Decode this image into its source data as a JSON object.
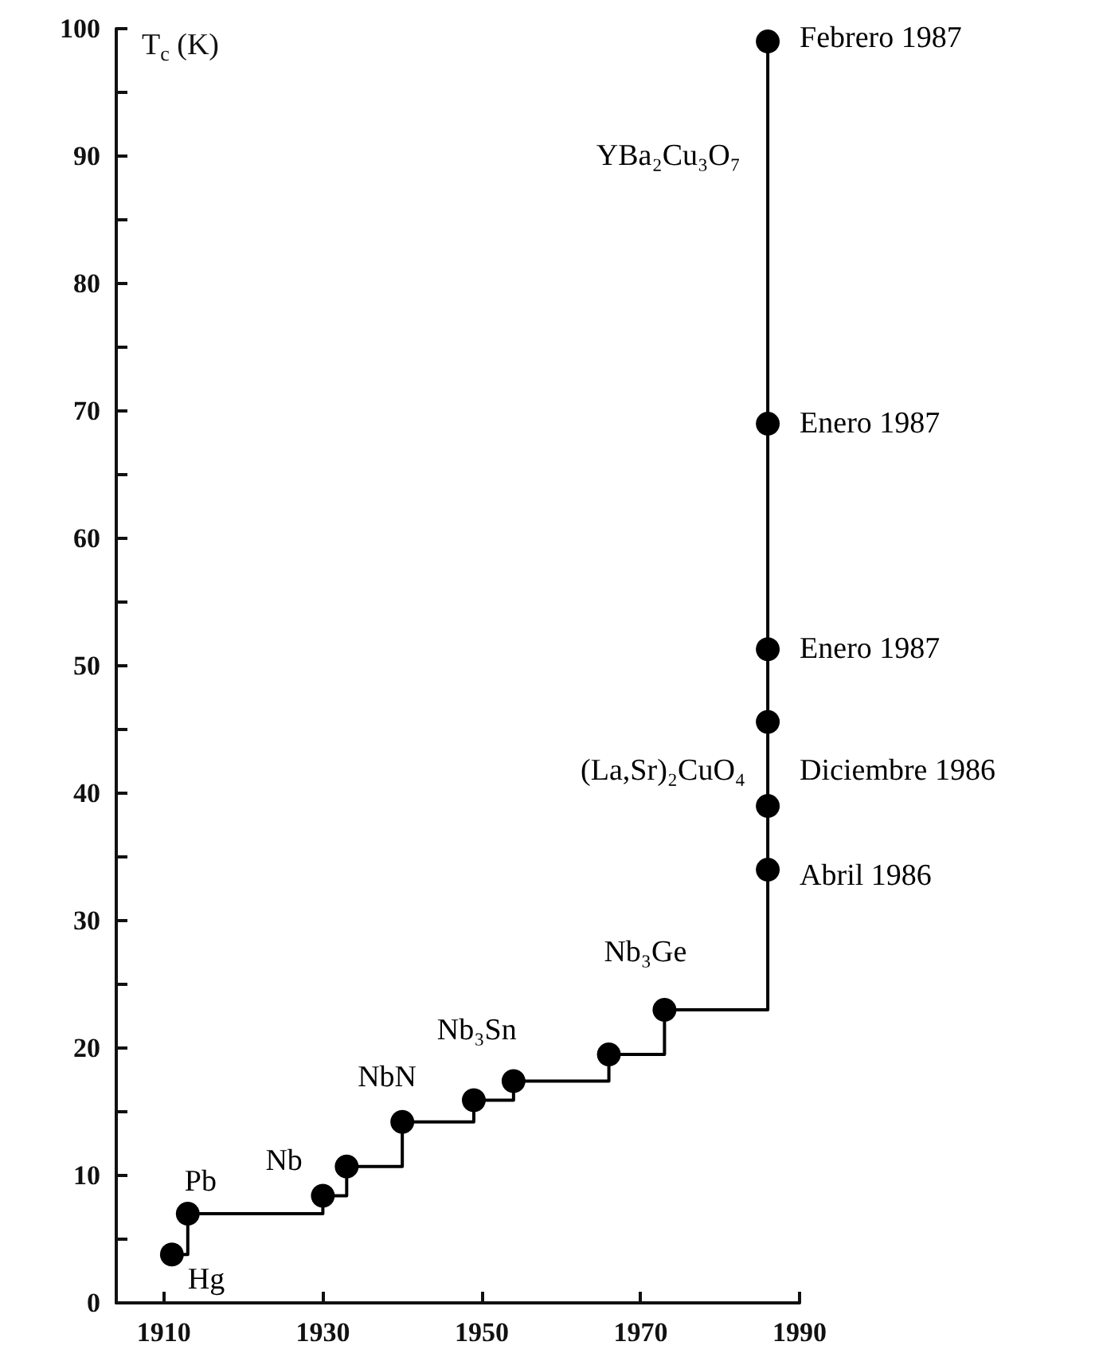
{
  "chart_data": {
    "type": "step",
    "ylabel": "T$_{c}$ (K)",
    "x": [
      1911,
      1913,
      1930,
      1933,
      1940,
      1949,
      1954,
      1966,
      1973,
      1986,
      1986,
      1986,
      1986,
      1986,
      1986
    ],
    "values": [
      3.8,
      7,
      8.4,
      10.7,
      14.2,
      15.9,
      17.4,
      19.5,
      23,
      34,
      39,
      45.6,
      51.3,
      69,
      99
    ],
    "color": "#000000",
    "marker": "circle",
    "grid": false,
    "xlim": [
      1904,
      1990
    ],
    "xticks": [
      1910,
      1930,
      1950,
      1970,
      1990
    ],
    "ylim": [
      0,
      100
    ],
    "yticks": [
      0,
      {
        "value": 5,
        "label": null
      },
      10,
      {
        "value": 15,
        "label": null
      },
      20,
      {
        "value": 25,
        "label": null
      },
      30,
      {
        "value": 35,
        "label": null
      },
      40,
      {
        "value": 45,
        "label": null
      },
      50,
      {
        "value": 55,
        "label": null
      },
      60,
      {
        "value": 65,
        "label": null
      },
      70,
      {
        "value": 75,
        "label": null
      },
      80,
      {
        "value": 85,
        "label": null
      },
      90,
      {
        "value": 95,
        "label": null
      },
      100
    ],
    "annotations": [
      {
        "text": "Hg",
        "x": 1911,
        "y": 3.8
      },
      {
        "text": "Pb",
        "x": 1913,
        "y": 7
      },
      {
        "text": "Nb",
        "x": 1930,
        "y": 8.4
      },
      {
        "text": "NbN",
        "x": 1940,
        "y": 14.2
      },
      {
        "text": "Nb₃Sn",
        "x": 1954,
        "y": 17.4
      },
      {
        "text": "Nb₃Ge",
        "x": 1973,
        "y": 23
      },
      {
        "text": "Febrero 1987",
        "x": 1986,
        "y": 99
      },
      {
        "text": "Enero 1987",
        "x": 1986,
        "y": 69
      },
      {
        "text": "Enero 1987",
        "x": 1986,
        "y": 51.3
      },
      {
        "text": "Diciembre 1986",
        "x": 1986,
        "y": 39
      },
      {
        "text": "Abril 1986",
        "x": 1986,
        "y": 34
      },
      {
        "text": "(La,Sr)₂CuO₄",
        "x": 1986,
        "y": 39
      },
      "YBa₂Cu₃O₇"
    ]
  }
}
